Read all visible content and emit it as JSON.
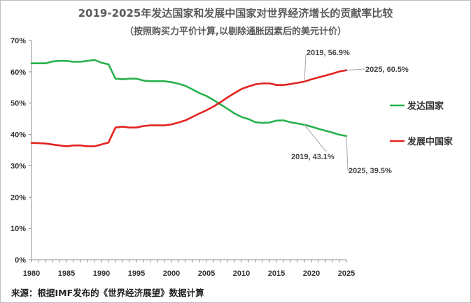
{
  "chart_data": {
    "type": "line",
    "title": "2019-2025年发达国家和发展中国家对世界经济增长的贡献率比较",
    "subtitle": "（按照购买力平价计算,以剔除通胀因素后的美元计价）",
    "source": "来源：根据IMF发布的《世界经济展望》数据计算",
    "xlim": [
      1980,
      2025
    ],
    "ylim": [
      0,
      70
    ],
    "x_ticks": [
      1980,
      1985,
      1990,
      1995,
      2000,
      2005,
      2010,
      2015,
      2020,
      2025
    ],
    "y_ticks": [
      "0%",
      "10%",
      "20%",
      "30%",
      "40%",
      "50%",
      "60%",
      "70%"
    ],
    "x": [
      1980,
      1981,
      1982,
      1983,
      1984,
      1985,
      1986,
      1987,
      1988,
      1989,
      1990,
      1991,
      1992,
      1993,
      1994,
      1995,
      1996,
      1997,
      1998,
      1999,
      2000,
      2001,
      2002,
      2003,
      2004,
      2005,
      2006,
      2007,
      2008,
      2009,
      2010,
      2011,
      2012,
      2013,
      2014,
      2015,
      2016,
      2017,
      2018,
      2019,
      2020,
      2021,
      2022,
      2023,
      2024,
      2025
    ],
    "series": [
      {
        "name": "发达国家",
        "color": "#27b14c",
        "values": [
          62.7,
          62.7,
          62.7,
          63.3,
          63.5,
          63.5,
          63.2,
          63.2,
          63.5,
          63.8,
          62.9,
          62.4,
          57.8,
          57.6,
          57.8,
          57.8,
          57.2,
          57.0,
          57.0,
          57.0,
          56.7,
          56.2,
          55.5,
          54.4,
          53.2,
          52.3,
          51.0,
          49.6,
          48.2,
          46.7,
          45.6,
          44.9,
          43.9,
          43.7,
          43.8,
          44.4,
          44.5,
          43.9,
          43.5,
          43.1,
          42.5,
          41.8,
          41.2,
          40.6,
          39.9,
          39.5
        ]
      },
      {
        "name": "发展中国家",
        "color": "#e3221e",
        "values": [
          37.3,
          37.2,
          37.1,
          36.8,
          36.5,
          36.2,
          36.5,
          36.5,
          36.2,
          36.2,
          36.8,
          37.4,
          42.2,
          42.5,
          42.2,
          42.2,
          42.7,
          42.9,
          42.9,
          42.9,
          43.2,
          43.8,
          44.5,
          45.6,
          46.7,
          47.7,
          48.9,
          50.3,
          51.8,
          53.2,
          54.5,
          55.3,
          56.0,
          56.3,
          56.3,
          55.8,
          55.8,
          56.1,
          56.5,
          56.9,
          57.6,
          58.2,
          58.8,
          59.4,
          60.1,
          60.5
        ]
      }
    ],
    "annotations": [
      {
        "text": "2019, 56.9%",
        "series": 1,
        "x": 2019
      },
      {
        "text": "2025, 60.5%",
        "series": 1,
        "x": 2025
      },
      {
        "text": "2019, 43.1%",
        "series": 0,
        "x": 2019
      },
      {
        "text": "2025, 39.5%",
        "series": 0,
        "x": 2025
      }
    ]
  }
}
